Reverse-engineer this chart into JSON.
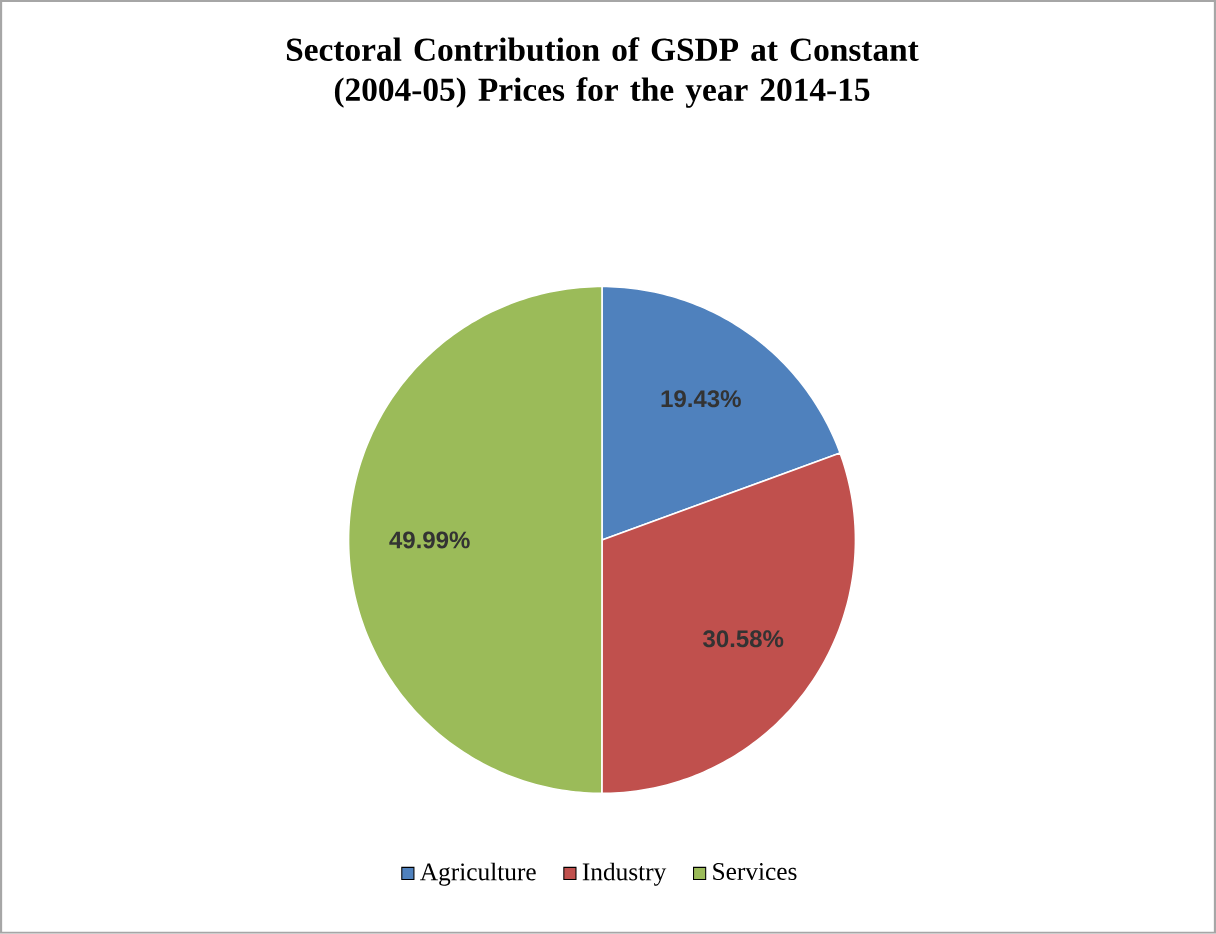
{
  "chart_data": {
    "type": "pie",
    "title": "Sectoral Contribution of GSDP at Constant (2004-05) Prices for the year 2014-15",
    "categories": [
      "Agriculture",
      "Industry",
      "Services"
    ],
    "values": [
      19.43,
      30.58,
      49.99
    ],
    "value_labels": [
      "19.43%",
      "30.58%",
      "49.99%"
    ],
    "colors": [
      "#4f81bd",
      "#c0504d",
      "#9bbb59"
    ],
    "legend": "bottom"
  }
}
